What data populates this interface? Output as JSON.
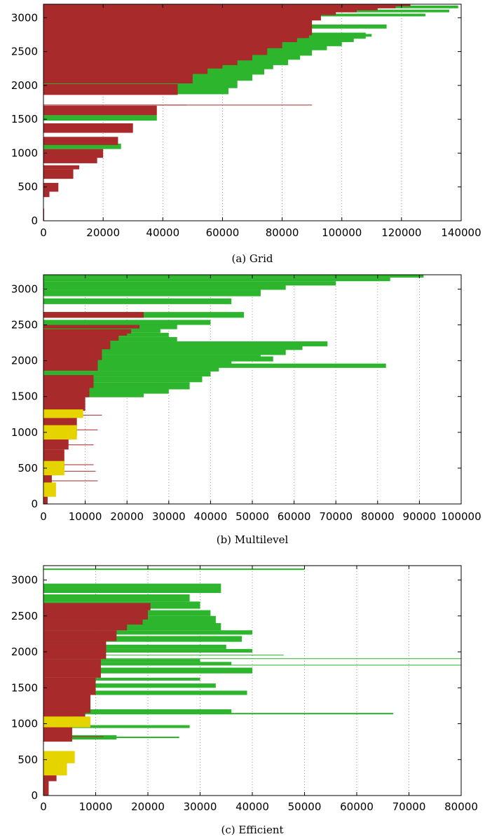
{
  "figure": {
    "colors": {
      "red": "#a82a2a",
      "green": "#2db52d",
      "yellow": "#e6d400",
      "blue": "#2040c0",
      "frame": "#000000",
      "grid": "#9a9a9a",
      "background": "#ffffff"
    }
  },
  "chart_data": [
    {
      "type": "bar",
      "orientation": "horizontal",
      "caption": "(a) Grid",
      "xlim": [
        0,
        140000
      ],
      "ylim": [
        0,
        3200
      ],
      "x_ticks": [
        0,
        20000,
        40000,
        60000,
        80000,
        100000,
        120000,
        140000
      ],
      "y_ticks": [
        0,
        500,
        1000,
        1500,
        2000,
        2500,
        3000
      ],
      "grid": {
        "x": true,
        "y": false
      },
      "series": [
        {
          "color": "red",
          "x": [
            0,
            0,
            2000,
            5000,
            10000,
            12000,
            18000,
            20000,
            25000,
            30000,
            38000,
            45000,
            50000,
            55000,
            60000,
            65000,
            70000,
            75000,
            80000,
            85000,
            88000,
            89000,
            90000,
            93000,
            98000,
            105000,
            112000,
            118000,
            123000
          ],
          "y_start": [
            0,
            100,
            350,
            430,
            620,
            760,
            850,
            930,
            1120,
            1300,
            1560,
            1860,
            2030,
            2170,
            2250,
            2300,
            2370,
            2450,
            2550,
            2640,
            2700,
            2700,
            2740,
            2960,
            3040,
            3080,
            3110,
            3140,
            3170
          ],
          "y_end": [
            100,
            180,
            460,
            560,
            760,
            820,
            960,
            1060,
            1240,
            1440,
            1700,
            2020,
            2180,
            2280,
            2330,
            2400,
            2480,
            2570,
            2660,
            2730,
            2740,
            2960,
            3040,
            3080,
            3110,
            3140,
            3170,
            3190,
            3200
          ]
        },
        {
          "color": "green",
          "x": [
            26000,
            38000,
            62000,
            65000,
            70000,
            74000,
            77000,
            82000,
            86000,
            90000,
            95000,
            100000,
            104000,
            108000,
            110000,
            115000,
            128000,
            136000,
            139000
          ],
          "y_start": [
            1060,
            1480,
            1870,
            1960,
            2070,
            2160,
            2240,
            2300,
            2380,
            2440,
            2520,
            2580,
            2640,
            2690,
            2720,
            2840,
            3020,
            3080,
            3140
          ],
          "y_end": [
            1140,
            1560,
            2040,
            2160,
            2270,
            2340,
            2440,
            2520,
            2600,
            2640,
            2700,
            2740,
            2760,
            2780,
            2760,
            2900,
            3060,
            3120,
            3180
          ]
        },
        {
          "color": "red",
          "x": [
            48000,
            90000
          ],
          "y_start": [
            1705,
            1705
          ],
          "y_end": [
            1715,
            1715
          ]
        }
      ]
    },
    {
      "type": "bar",
      "orientation": "horizontal",
      "caption": "(b) Multilevel",
      "xlim": [
        0,
        100000
      ],
      "ylim": [
        0,
        3200
      ],
      "x_ticks": [
        0,
        10000,
        20000,
        30000,
        40000,
        50000,
        60000,
        70000,
        80000,
        90000,
        100000
      ],
      "y_ticks": [
        0,
        500,
        1000,
        1500,
        2000,
        2500,
        3000
      ],
      "grid": {
        "x": true,
        "y": false
      },
      "series": [
        {
          "color": "red",
          "x": [
            1000,
            2000,
            3000,
            5000,
            6000,
            8000,
            10000,
            11000,
            12000,
            13000,
            14000,
            16000,
            18000,
            20000,
            21000,
            23000,
            24000
          ],
          "y_start": [
            0,
            250,
            400,
            480,
            760,
            950,
            1300,
            1490,
            1620,
            1860,
            2010,
            2160,
            2280,
            2350,
            2380,
            2450,
            2600
          ],
          "y_end": [
            200,
            470,
            600,
            760,
            1040,
            1300,
            1500,
            1640,
            1800,
            2020,
            2180,
            2300,
            2380,
            2420,
            2440,
            2500,
            2680
          ]
        },
        {
          "color": "yellow",
          "x": [
            3000,
            5000,
            8000,
            9500
          ],
          "y_start": [
            100,
            400,
            900,
            1200
          ],
          "y_end": [
            300,
            600,
            1100,
            1320
          ]
        },
        {
          "color": "green",
          "x": [
            24000,
            30000,
            35000,
            38000,
            40000,
            42000,
            45000,
            52000,
            55000,
            58000,
            62000,
            68000,
            82000,
            32000,
            30000,
            28000,
            32000,
            40000,
            48000,
            45000,
            52000,
            58000,
            70000,
            83000,
            91000
          ],
          "y_start": [
            1490,
            1540,
            1600,
            1700,
            1780,
            1850,
            1920,
            2010,
            1990,
            2080,
            2150,
            2200,
            1900,
            2270,
            2330,
            2390,
            2440,
            2500,
            2600,
            2790,
            2900,
            2990,
            3050,
            3110,
            3160
          ],
          "y_end": [
            1560,
            1620,
            1700,
            1780,
            1850,
            1920,
            2000,
            2080,
            2060,
            2160,
            2230,
            2270,
            1960,
            2330,
            2390,
            2450,
            2520,
            2570,
            2680,
            2870,
            2990,
            3060,
            3110,
            3160,
            3200
          ]
        },
        {
          "color": "red",
          "x": [
            13000,
            12500,
            12000,
            12000,
            13000,
            14000
          ],
          "y_start": [
            318,
            452,
            543,
            820,
            1030,
            1235
          ],
          "y_end": [
            328,
            462,
            553,
            830,
            1040,
            1245
          ]
        }
      ]
    },
    {
      "type": "bar",
      "orientation": "horizontal",
      "caption": "(c) Efficient",
      "xlim": [
        0,
        80000
      ],
      "ylim": [
        0,
        3200
      ],
      "x_ticks": [
        0,
        10000,
        20000,
        30000,
        40000,
        50000,
        60000,
        70000,
        80000
      ],
      "y_ticks": [
        0,
        500,
        1000,
        1500,
        2000,
        2500,
        3000
      ],
      "grid": {
        "x": true,
        "y": false
      },
      "series": [
        {
          "color": "red",
          "x": [
            1000,
            2500,
            4000,
            5500,
            6500,
            8000,
            9000,
            10000,
            11000,
            12000,
            14000,
            16000,
            19000,
            20000,
            20500
          ],
          "y_start": [
            0,
            200,
            520,
            750,
            1000,
            1050,
            1150,
            1400,
            1640,
            1900,
            2150,
            2300,
            2380,
            2450,
            2580
          ],
          "y_end": [
            200,
            520,
            560,
            1050,
            1250,
            1150,
            1400,
            1640,
            1900,
            2150,
            2300,
            2380,
            2450,
            2580,
            2680
          ]
        },
        {
          "color": "yellow",
          "x": [
            4500,
            6000,
            9000
          ],
          "y_start": [
            280,
            450,
            950
          ],
          "y_end": [
            500,
            620,
            1100
          ]
        },
        {
          "color": "green",
          "x": [
            14000,
            26000,
            28000,
            36000,
            39000,
            33000,
            30000,
            40000,
            67000,
            36000,
            30000,
            40000,
            80000,
            35000,
            46000,
            80000,
            38000,
            40000,
            34000,
            33000,
            32000,
            30000,
            28000,
            34000,
            50000
          ],
          "y_start": [
            780,
            800,
            940,
            1140,
            1400,
            1500,
            1600,
            1700,
            1130,
            1820,
            1860,
            1990,
            1810,
            2040,
            1950,
            1900,
            2140,
            2240,
            2300,
            2400,
            2500,
            2600,
            2700,
            2820,
            3140
          ],
          "y_end": [
            840,
            820,
            980,
            1200,
            1460,
            1560,
            1640,
            1780,
            1150,
            1860,
            1900,
            2040,
            1820,
            2100,
            1960,
            1910,
            2220,
            2300,
            2400,
            2500,
            2580,
            2700,
            2800,
            2950,
            3160
          ]
        },
        {
          "color": "red",
          "x": [
            11500,
            80000
          ],
          "y_start": [
            815,
            3195
          ],
          "y_end": [
            825,
            3205
          ]
        }
      ]
    }
  ]
}
